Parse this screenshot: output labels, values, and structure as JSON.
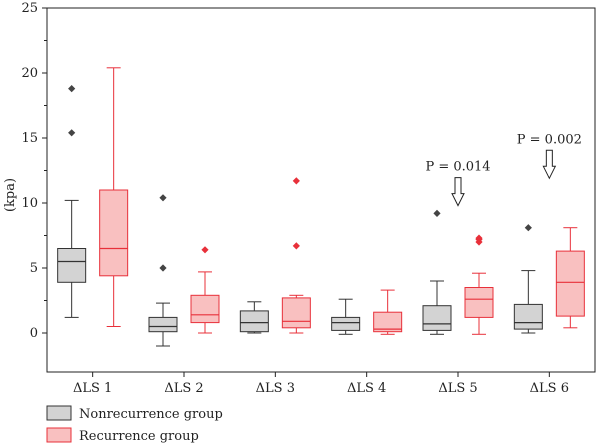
{
  "chart_data": {
    "type": "box",
    "ylabel": "(kpa)",
    "ylim": [
      -3,
      25
    ],
    "yticks": [
      0,
      5,
      10,
      15,
      20,
      25
    ],
    "categories": [
      "ΔLS 1",
      "ΔLS 2",
      "ΔLS 3",
      "ΔLS 4",
      "ΔLS 5",
      "ΔLS 6"
    ],
    "series": [
      {
        "name": "Nonrecurrence group",
        "fill": "#d3d3d3",
        "stroke": "#333333",
        "outlier_color": "#444444",
        "boxes": [
          {
            "whisker_low": 1.2,
            "q1": 3.9,
            "median": 5.5,
            "q3": 6.5,
            "whisker_high": 10.2,
            "outliers": [
              15.4,
              18.8
            ]
          },
          {
            "whisker_low": -1.0,
            "q1": 0.1,
            "median": 0.5,
            "q3": 1.2,
            "whisker_high": 2.3,
            "outliers": [
              5.0,
              10.4
            ]
          },
          {
            "whisker_low": 0.0,
            "q1": 0.1,
            "median": 0.8,
            "q3": 1.7,
            "whisker_high": 2.4,
            "outliers": []
          },
          {
            "whisker_low": -0.1,
            "q1": 0.2,
            "median": 0.8,
            "q3": 1.2,
            "whisker_high": 2.6,
            "outliers": []
          },
          {
            "whisker_low": -0.1,
            "q1": 0.2,
            "median": 0.7,
            "q3": 2.1,
            "whisker_high": 4.0,
            "outliers": [
              9.2
            ]
          },
          {
            "whisker_low": 0.0,
            "q1": 0.3,
            "median": 0.8,
            "q3": 2.2,
            "whisker_high": 4.8,
            "outliers": [
              8.1
            ]
          }
        ]
      },
      {
        "name": "Recurrence group",
        "fill": "#f9c0c0",
        "stroke": "#e8303a",
        "outlier_color": "#e8303a",
        "boxes": [
          {
            "whisker_low": 0.5,
            "q1": 4.4,
            "median": 6.5,
            "q3": 11.0,
            "whisker_high": 20.4,
            "outliers": []
          },
          {
            "whisker_low": 0.0,
            "q1": 0.8,
            "median": 1.4,
            "q3": 2.9,
            "whisker_high": 4.7,
            "outliers": [
              6.4
            ]
          },
          {
            "whisker_low": 0.0,
            "q1": 0.4,
            "median": 0.9,
            "q3": 2.7,
            "whisker_high": 2.9,
            "outliers": [
              6.7,
              11.7
            ]
          },
          {
            "whisker_low": -0.1,
            "q1": 0.1,
            "median": 0.3,
            "q3": 1.6,
            "whisker_high": 3.3,
            "outliers": []
          },
          {
            "whisker_low": -0.1,
            "q1": 1.2,
            "median": 2.6,
            "q3": 3.5,
            "whisker_high": 4.6,
            "outliers": [
              7.0,
              7.2,
              7.3
            ]
          },
          {
            "whisker_low": 0.4,
            "q1": 1.3,
            "median": 3.9,
            "q3": 6.3,
            "whisker_high": 8.1,
            "outliers": []
          }
        ]
      }
    ],
    "annotations": [
      {
        "text": "P = 0.014",
        "category_index": 4,
        "arrow_tip": 9.8
      },
      {
        "text": "P = 0.002",
        "category_index": 5,
        "arrow_tip": 11.9
      }
    ],
    "legend": {
      "placement": "bottom-left"
    }
  }
}
